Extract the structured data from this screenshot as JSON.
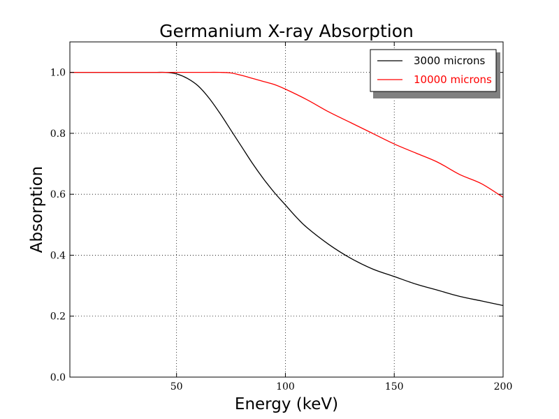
{
  "chart_data": {
    "type": "line",
    "title": "Germanium X-ray Absorption",
    "xlabel": "Energy (keV)",
    "ylabel": "Absorption",
    "xlim": [
      1,
      200
    ],
    "ylim": [
      0.0,
      1.1
    ],
    "xticks": [
      50,
      100,
      150,
      200
    ],
    "xtick_labels": [
      "50",
      "100",
      "150",
      "200"
    ],
    "yticks": [
      0.0,
      0.2,
      0.4,
      0.6,
      0.8,
      1.0
    ],
    "ytick_labels": [
      "0.0",
      "0.2",
      "0.4",
      "0.6",
      "0.8",
      "1.0"
    ],
    "grid": true,
    "legend": "top-right",
    "series": [
      {
        "name": "3000 microns",
        "color": "#000000",
        "x": [
          1,
          10,
          20,
          30,
          40,
          45,
          50,
          55,
          60,
          65,
          70,
          75,
          80,
          85,
          90,
          95,
          100,
          105,
          110,
          120,
          130,
          140,
          150,
          160,
          170,
          180,
          190,
          200
        ],
        "y": [
          1.0,
          1.0,
          1.0,
          1.0,
          1.0,
          1.0,
          0.995,
          0.98,
          0.955,
          0.915,
          0.865,
          0.81,
          0.755,
          0.7,
          0.65,
          0.605,
          0.565,
          0.525,
          0.49,
          0.435,
          0.39,
          0.355,
          0.33,
          0.305,
          0.285,
          0.265,
          0.25,
          0.235
        ]
      },
      {
        "name": "10000 microns",
        "color": "#ff0000",
        "x": [
          1,
          20,
          40,
          60,
          70,
          75,
          80,
          85,
          90,
          95,
          100,
          110,
          120,
          130,
          140,
          150,
          160,
          170,
          180,
          190,
          200
        ],
        "y": [
          1.0,
          1.0,
          1.0,
          1.0,
          1.0,
          0.998,
          0.99,
          0.98,
          0.97,
          0.96,
          0.945,
          0.91,
          0.87,
          0.835,
          0.8,
          0.765,
          0.735,
          0.705,
          0.665,
          0.635,
          0.59
        ]
      }
    ]
  }
}
